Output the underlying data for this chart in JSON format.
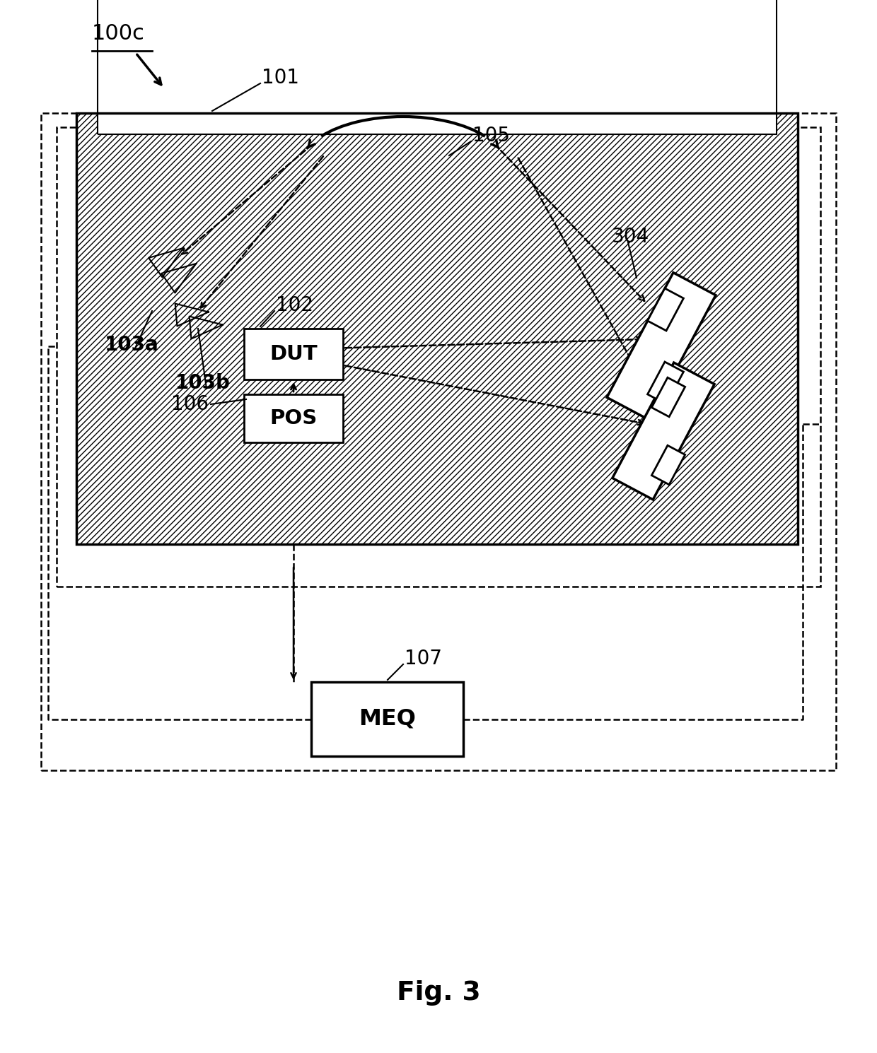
{
  "fig_label": "Fig. 3",
  "label_100c": "100c",
  "label_101": "101",
  "label_102": "102",
  "label_103a": "103a",
  "label_103b": "103b",
  "label_105": "105",
  "label_106": "106",
  "label_107": "107",
  "label_304": "304",
  "bg_color": "#ffffff"
}
